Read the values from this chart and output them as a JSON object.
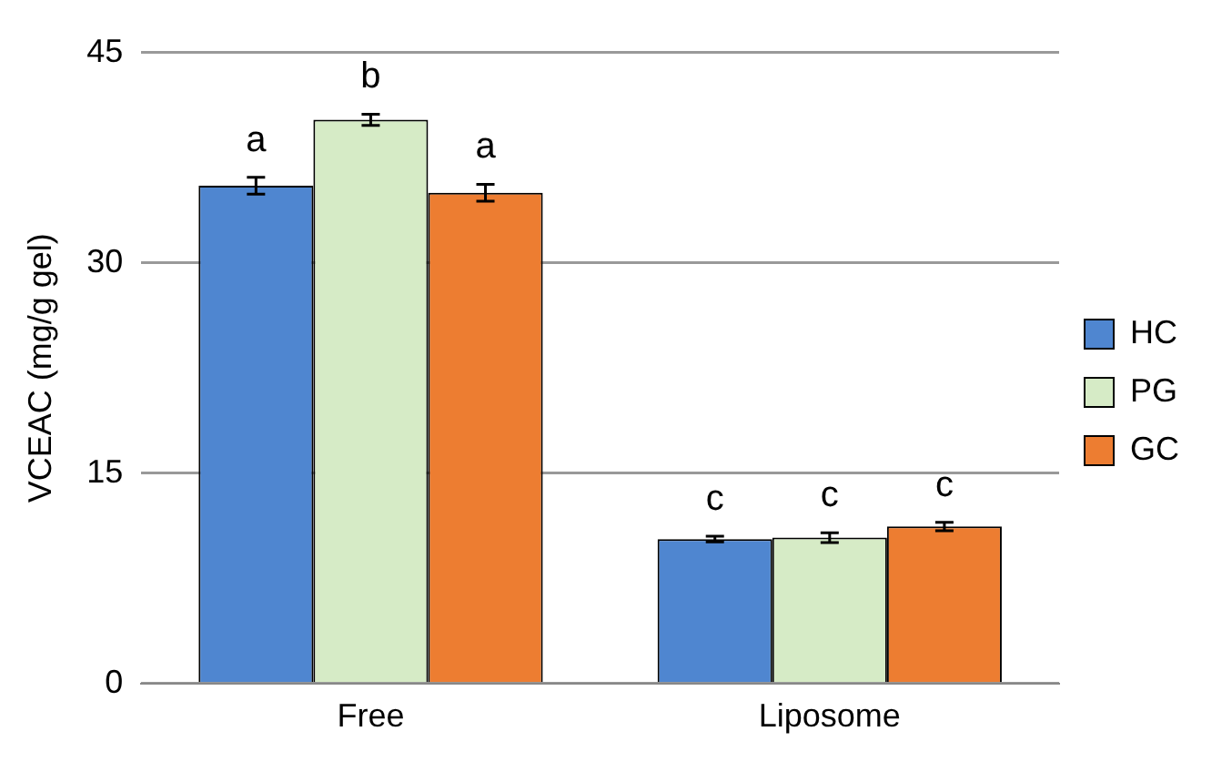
{
  "chart_data": {
    "type": "bar",
    "ylabel": "VCEAC (mg/g gel)",
    "categories": [
      "Free",
      "Liposome"
    ],
    "series": [
      {
        "name": "HC",
        "color": "#4f86d0",
        "values": [
          35.5,
          10.3
        ],
        "errors": [
          0.6,
          0.2
        ],
        "value_labels": [
          "a",
          "c"
        ]
      },
      {
        "name": "PG",
        "color": "#d6ebc6",
        "values": [
          40.2,
          10.4
        ],
        "errors": [
          0.4,
          0.35
        ],
        "value_labels": [
          "b",
          "c"
        ]
      },
      {
        "name": "GC",
        "color": "#ed7d31",
        "values": [
          35.0,
          11.2
        ],
        "errors": [
          0.6,
          0.3
        ],
        "value_labels": [
          "a",
          "c"
        ]
      }
    ],
    "ylim": [
      0,
      45
    ],
    "yticks": [
      0,
      15,
      30,
      45
    ],
    "grid": "y",
    "legend": "right"
  }
}
